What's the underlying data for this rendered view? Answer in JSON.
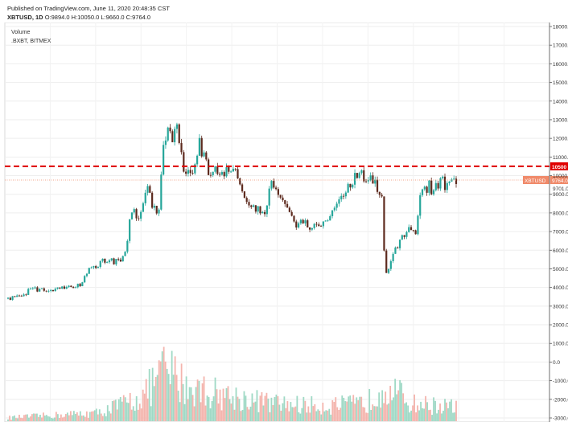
{
  "header": {
    "published": "Published on TradingView.com, June 11, 2020 20:48:35 CST",
    "symbol": "XBTUSD, 1D",
    "ohlc": "O:9894.0 H:10050.0 L:9660.0 C:9764.0"
  },
  "legend": {
    "volume_label": "Volume",
    "index_label": ".BXBT, BITMEX"
  },
  "colors": {
    "up": "#26a69a",
    "down": "#5d2a1e",
    "vol_up": "#9fd9c5",
    "vol_down": "#f4b4ad",
    "resistance": "#e00000",
    "price_tag": "#f08a6a"
  },
  "chart_data": {
    "type": "candlestick",
    "symbol": "XBTUSD",
    "interval": "1D",
    "y_axis_ticks": [
      "18000.0",
      "17000.0",
      "16000.0",
      "15000.0",
      "14000.0",
      "13000.0",
      "12000.0",
      "11000.0",
      "10000.0",
      "9000.0",
      "8000.0",
      "7000.0",
      "6000.0",
      "5000.0",
      "4000.0",
      "3000.0",
      "2000.0",
      "1000.0",
      "0.0",
      "-1000.0",
      "-2000.0",
      "-3000.0"
    ],
    "y_axis_values": [
      18000,
      17000,
      16000,
      15000,
      14000,
      13000,
      12000,
      11000,
      10000,
      9000,
      8000,
      7000,
      6000,
      5000,
      4000,
      3000,
      2000,
      1000,
      0,
      -1000,
      -2000,
      -3000
    ],
    "resistance_level": 10500,
    "resistance_label": "10500",
    "last_price": 9764,
    "last_price_label": "9764.0",
    "last_price_tag": "XBTUSD",
    "extra_tick_label": "9701.0",
    "price_path": [
      {
        "t": 0,
        "v": 3400
      },
      {
        "t": 0.03,
        "v": 3500
      },
      {
        "t": 0.05,
        "v": 3900
      },
      {
        "t": 0.1,
        "v": 3850
      },
      {
        "t": 0.13,
        "v": 3950
      },
      {
        "t": 0.16,
        "v": 4100
      },
      {
        "t": 0.18,
        "v": 5100
      },
      {
        "t": 0.2,
        "v": 5200
      },
      {
        "t": 0.22,
        "v": 5500
      },
      {
        "t": 0.24,
        "v": 5400
      },
      {
        "t": 0.26,
        "v": 5600
      },
      {
        "t": 0.275,
        "v": 8100
      },
      {
        "t": 0.29,
        "v": 7800
      },
      {
        "t": 0.31,
        "v": 9400
      },
      {
        "t": 0.32,
        "v": 8500
      },
      {
        "t": 0.335,
        "v": 7900
      },
      {
        "t": 0.345,
        "v": 11200
      },
      {
        "t": 0.36,
        "v": 12800
      },
      {
        "t": 0.365,
        "v": 11400
      },
      {
        "t": 0.375,
        "v": 12900
      },
      {
        "t": 0.385,
        "v": 11600
      },
      {
        "t": 0.395,
        "v": 10000
      },
      {
        "t": 0.405,
        "v": 10600
      },
      {
        "t": 0.415,
        "v": 10100
      },
      {
        "t": 0.425,
        "v": 11800
      },
      {
        "t": 0.435,
        "v": 11000
      },
      {
        "t": 0.445,
        "v": 10400
      },
      {
        "t": 0.455,
        "v": 10100
      },
      {
        "t": 0.47,
        "v": 10400
      },
      {
        "t": 0.485,
        "v": 10200
      },
      {
        "t": 0.5,
        "v": 10300
      },
      {
        "t": 0.515,
        "v": 10000
      },
      {
        "t": 0.53,
        "v": 8400
      },
      {
        "t": 0.55,
        "v": 8200
      },
      {
        "t": 0.565,
        "v": 8100
      },
      {
        "t": 0.575,
        "v": 8000
      },
      {
        "t": 0.585,
        "v": 9700
      },
      {
        "t": 0.6,
        "v": 9300
      },
      {
        "t": 0.615,
        "v": 8700
      },
      {
        "t": 0.63,
        "v": 7800
      },
      {
        "t": 0.645,
        "v": 7300
      },
      {
        "t": 0.66,
        "v": 7600
      },
      {
        "t": 0.675,
        "v": 7200
      },
      {
        "t": 0.69,
        "v": 7500
      },
      {
        "t": 0.705,
        "v": 7300
      },
      {
        "t": 0.72,
        "v": 8000
      },
      {
        "t": 0.735,
        "v": 8600
      },
      {
        "t": 0.75,
        "v": 9000
      },
      {
        "t": 0.765,
        "v": 9400
      },
      {
        "t": 0.775,
        "v": 9900
      },
      {
        "t": 0.785,
        "v": 10200
      },
      {
        "t": 0.795,
        "v": 9700
      },
      {
        "t": 0.805,
        "v": 9600
      },
      {
        "t": 0.815,
        "v": 9800
      },
      {
        "t": 0.825,
        "v": 9000
      },
      {
        "t": 0.835,
        "v": 8700
      },
      {
        "t": 0.842,
        "v": 4500
      },
      {
        "t": 0.85,
        "v": 5000
      },
      {
        "t": 0.86,
        "v": 5700
      },
      {
        "t": 0.87,
        "v": 6300
      },
      {
        "t": 0.88,
        "v": 6800
      },
      {
        "t": 0.89,
        "v": 6900
      },
      {
        "t": 0.9,
        "v": 7300
      },
      {
        "t": 0.91,
        "v": 7100
      },
      {
        "t": 0.92,
        "v": 8800
      },
      {
        "t": 0.93,
        "v": 9200
      },
      {
        "t": 0.94,
        "v": 9500
      },
      {
        "t": 0.95,
        "v": 9100
      },
      {
        "t": 0.96,
        "v": 9600
      },
      {
        "t": 0.97,
        "v": 9700
      },
      {
        "t": 0.98,
        "v": 9400
      },
      {
        "t": 0.99,
        "v": 9800
      },
      {
        "t": 1,
        "v": 9764
      }
    ],
    "volume_shape": [
      {
        "t": 0,
        "v": 0.05
      },
      {
        "t": 0.2,
        "v": 0.12
      },
      {
        "t": 0.3,
        "v": 0.35
      },
      {
        "t": 0.35,
        "v": 0.75
      },
      {
        "t": 0.4,
        "v": 0.5
      },
      {
        "t": 0.5,
        "v": 0.35
      },
      {
        "t": 0.6,
        "v": 0.25
      },
      {
        "t": 0.7,
        "v": 0.22
      },
      {
        "t": 0.8,
        "v": 0.25
      },
      {
        "t": 0.84,
        "v": 0.55
      },
      {
        "t": 0.9,
        "v": 0.25
      },
      {
        "t": 1,
        "v": 0.2
      }
    ]
  }
}
